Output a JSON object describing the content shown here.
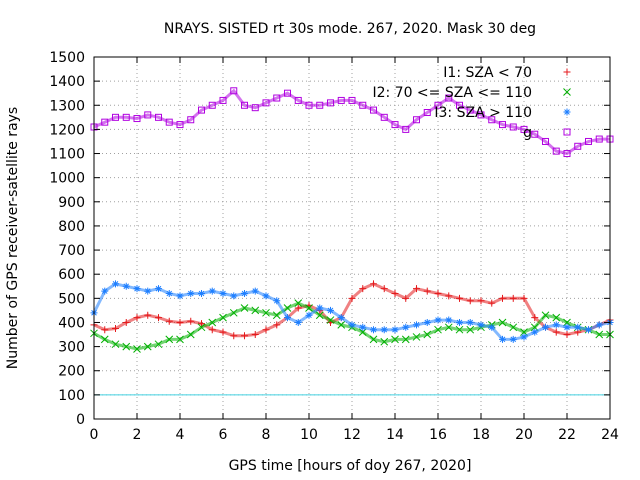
{
  "chart_data": {
    "type": "scatter",
    "title": "NRAYS. SISTED rt 30s mode. 267, 2020. Mask 30 deg",
    "xlabel": "GPS time [hours of doy 267, 2020]",
    "ylabel": "Number of GPS receiver-satellite rays",
    "xlim": [
      0,
      24
    ],
    "ylim": [
      0,
      1500
    ],
    "x_ticks": [
      0,
      2,
      4,
      6,
      8,
      10,
      12,
      14,
      16,
      18,
      20,
      22,
      24
    ],
    "y_ticks": [
      0,
      100,
      200,
      300,
      400,
      500,
      600,
      700,
      800,
      900,
      1000,
      1100,
      1200,
      1300,
      1400,
      1500
    ],
    "grid": true,
    "legend_position": "top-right",
    "reference_line": {
      "y": 100,
      "color": "#40d0e0"
    },
    "series": [
      {
        "name": "I1: SZA < 70",
        "marker": "+",
        "color": "#e41a1c",
        "x": [
          0,
          0.5,
          1,
          1.5,
          2,
          2.5,
          3,
          3.5,
          4,
          4.5,
          5,
          5.5,
          6,
          6.5,
          7,
          7.5,
          8,
          8.5,
          9,
          9.5,
          10,
          10.5,
          11,
          11.5,
          12,
          12.5,
          13,
          13.5,
          14,
          14.5,
          15,
          15.5,
          16,
          16.5,
          17,
          17.5,
          18,
          18.5,
          19,
          19.5,
          20,
          20.5,
          21,
          21.5,
          22,
          22.5,
          23,
          23.5,
          24
        ],
        "y": [
          390,
          370,
          375,
          400,
          420,
          430,
          420,
          405,
          400,
          405,
          395,
          370,
          360,
          345,
          345,
          350,
          370,
          390,
          420,
          460,
          470,
          450,
          400,
          420,
          500,
          540,
          560,
          540,
          520,
          500,
          540,
          530,
          520,
          510,
          500,
          490,
          490,
          480,
          500,
          500,
          500,
          420,
          380,
          360,
          350,
          360,
          370,
          390,
          410
        ]
      },
      {
        "name": "I2: 70 <= SZA <= 110",
        "marker": "x",
        "color": "#00b000",
        "x": [
          0,
          0.5,
          1,
          1.5,
          2,
          2.5,
          3,
          3.5,
          4,
          4.5,
          5,
          5.5,
          6,
          6.5,
          7,
          7.5,
          8,
          8.5,
          9,
          9.5,
          10,
          10.5,
          11,
          11.5,
          12,
          12.5,
          13,
          13.5,
          14,
          14.5,
          15,
          15.5,
          16,
          16.5,
          17,
          17.5,
          18,
          18.5,
          19,
          19.5,
          20,
          20.5,
          21,
          21.5,
          22,
          22.5,
          23,
          23.5,
          24
        ],
        "y": [
          355,
          330,
          310,
          300,
          290,
          300,
          310,
          330,
          330,
          350,
          380,
          400,
          420,
          440,
          460,
          450,
          440,
          430,
          460,
          480,
          460,
          430,
          410,
          390,
          380,
          360,
          330,
          320,
          330,
          330,
          340,
          350,
          370,
          380,
          370,
          370,
          380,
          390,
          400,
          380,
          360,
          380,
          430,
          420,
          400,
          380,
          370,
          350,
          350
        ]
      },
      {
        "name": "I3: SZA > 110",
        "marker": "*",
        "color": "#1e7fff",
        "x": [
          0,
          0.5,
          1,
          1.5,
          2,
          2.5,
          3,
          3.5,
          4,
          4.5,
          5,
          5.5,
          6,
          6.5,
          7,
          7.5,
          8,
          8.5,
          9,
          9.5,
          10,
          10.5,
          11,
          11.5,
          12,
          12.5,
          13,
          13.5,
          14,
          14.5,
          15,
          15.5,
          16,
          16.5,
          17,
          17.5,
          18,
          18.5,
          19,
          19.5,
          20,
          20.5,
          21,
          21.5,
          22,
          22.5,
          23,
          23.5,
          24
        ],
        "y": [
          440,
          530,
          560,
          550,
          540,
          530,
          540,
          520,
          510,
          520,
          520,
          530,
          520,
          510,
          520,
          530,
          510,
          490,
          420,
          400,
          430,
          460,
          450,
          420,
          390,
          380,
          370,
          370,
          370,
          380,
          390,
          400,
          410,
          410,
          400,
          400,
          390,
          380,
          330,
          330,
          340,
          360,
          380,
          390,
          380,
          380,
          370,
          390,
          400
        ]
      },
      {
        "name": "g",
        "marker": "square",
        "color": "#b000e0",
        "x": [
          0,
          0.5,
          1,
          1.5,
          2,
          2.5,
          3,
          3.5,
          4,
          4.5,
          5,
          5.5,
          6,
          6.5,
          7,
          7.5,
          8,
          8.5,
          9,
          9.5,
          10,
          10.5,
          11,
          11.5,
          12,
          12.5,
          13,
          13.5,
          14,
          14.5,
          15,
          15.5,
          16,
          16.5,
          17,
          17.5,
          18,
          18.5,
          19,
          19.5,
          20,
          20.5,
          21,
          21.5,
          22,
          22.5,
          23,
          23.5,
          24
        ],
        "y": [
          1210,
          1230,
          1250,
          1250,
          1245,
          1260,
          1250,
          1230,
          1220,
          1240,
          1280,
          1300,
          1320,
          1360,
          1300,
          1290,
          1310,
          1330,
          1350,
          1320,
          1300,
          1300,
          1310,
          1320,
          1320,
          1300,
          1280,
          1250,
          1220,
          1200,
          1240,
          1270,
          1300,
          1330,
          1300,
          1280,
          1260,
          1240,
          1220,
          1210,
          1200,
          1180,
          1150,
          1110,
          1100,
          1130,
          1150,
          1160,
          1160
        ]
      }
    ]
  }
}
